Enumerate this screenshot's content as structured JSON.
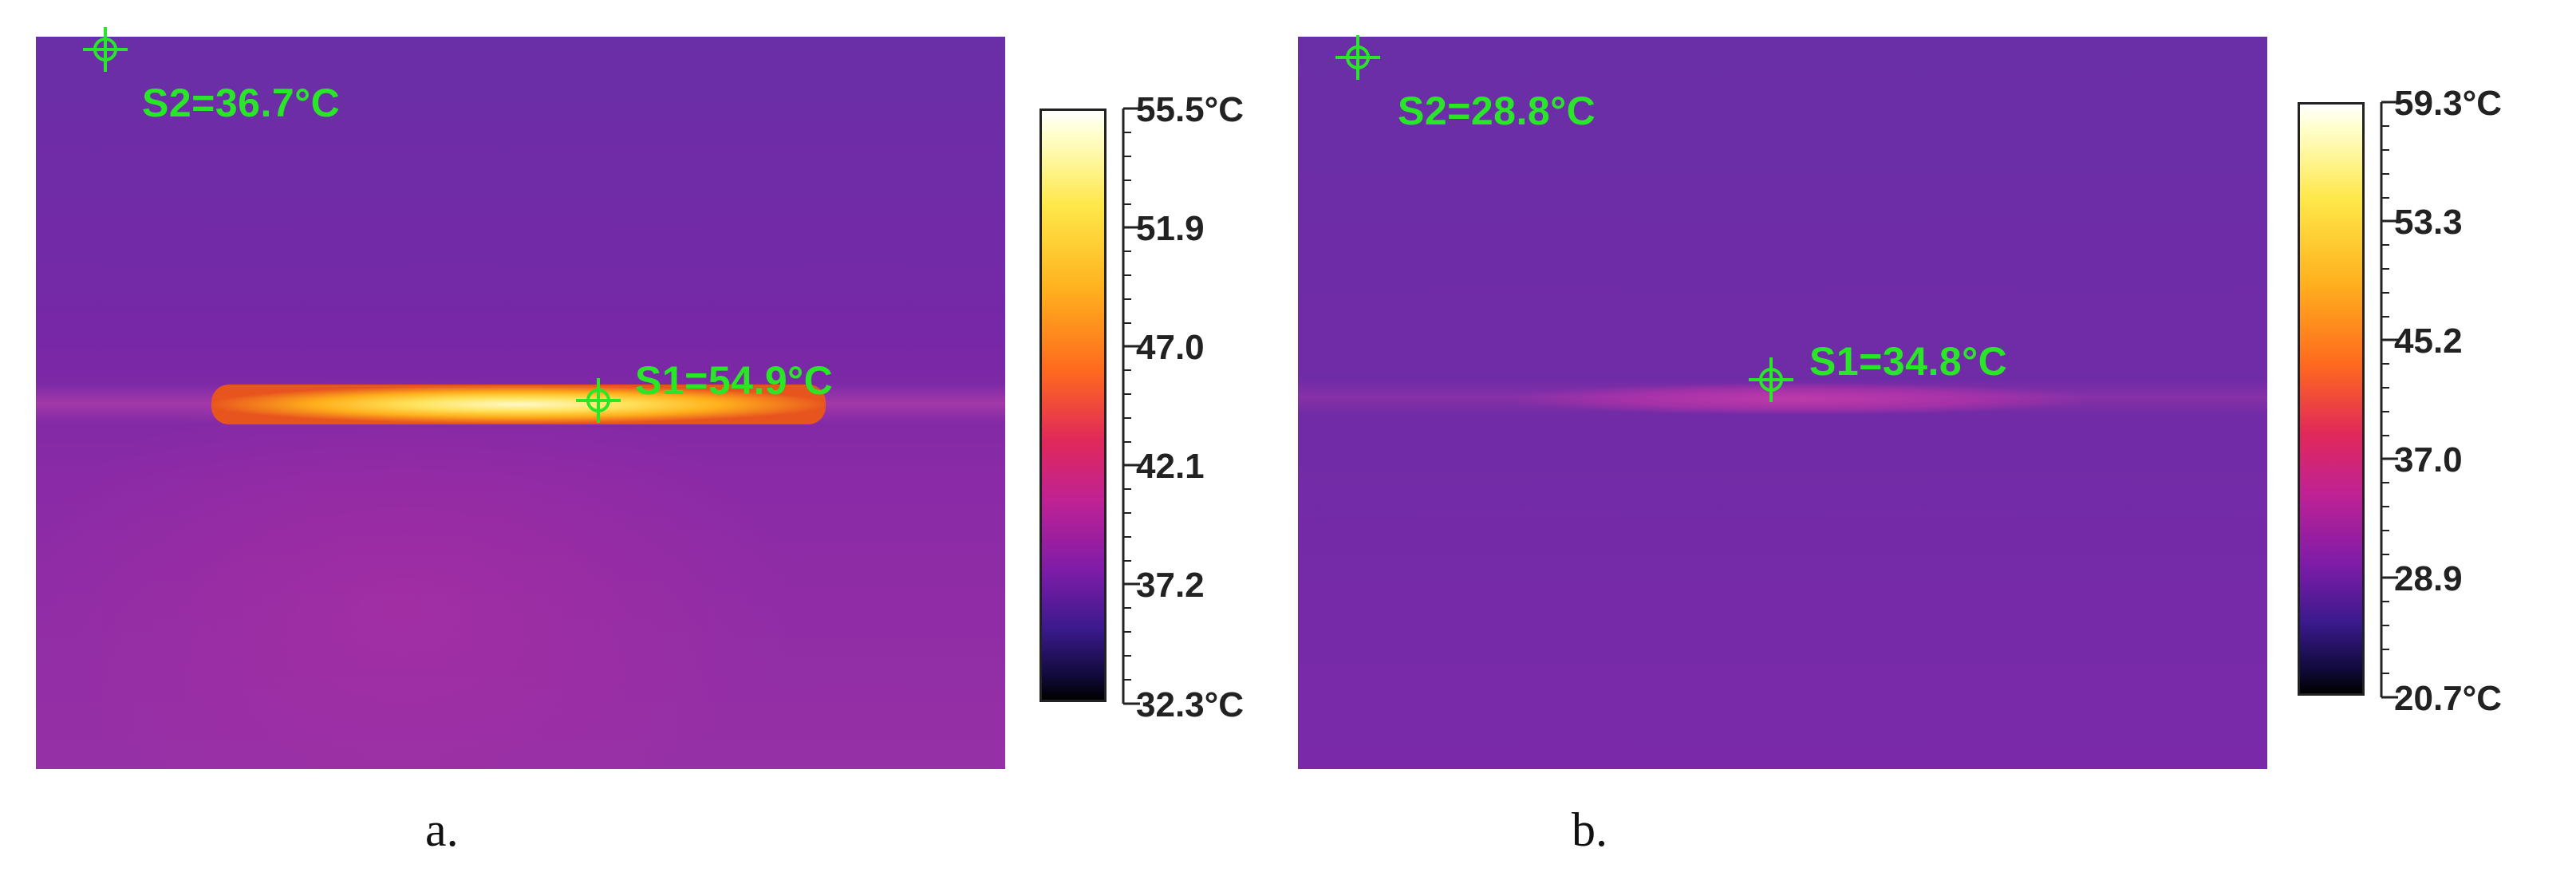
{
  "panels": [
    {
      "id": "a",
      "caption": "a.",
      "spot_s1": "S1=54.9°C",
      "spot_s2": "S2=36.7°C",
      "scale_ticks": [
        "55.5°C",
        "51.9",
        "47.0",
        "42.1",
        "37.2",
        "32.3°C"
      ],
      "hot_streak_color": "#ffd21a"
    },
    {
      "id": "b",
      "caption": "b.",
      "spot_s1": "S1=34.8°C",
      "spot_s2": "S2=28.8°C",
      "scale_ticks": [
        "59.3°C",
        "53.3",
        "45.2",
        "37.0",
        "28.9",
        "20.7°C"
      ],
      "hot_streak_color": "#b8349f"
    }
  ],
  "colors": {
    "spot_marker": "#29e629",
    "background_thermal": "#7a2aa6"
  }
}
